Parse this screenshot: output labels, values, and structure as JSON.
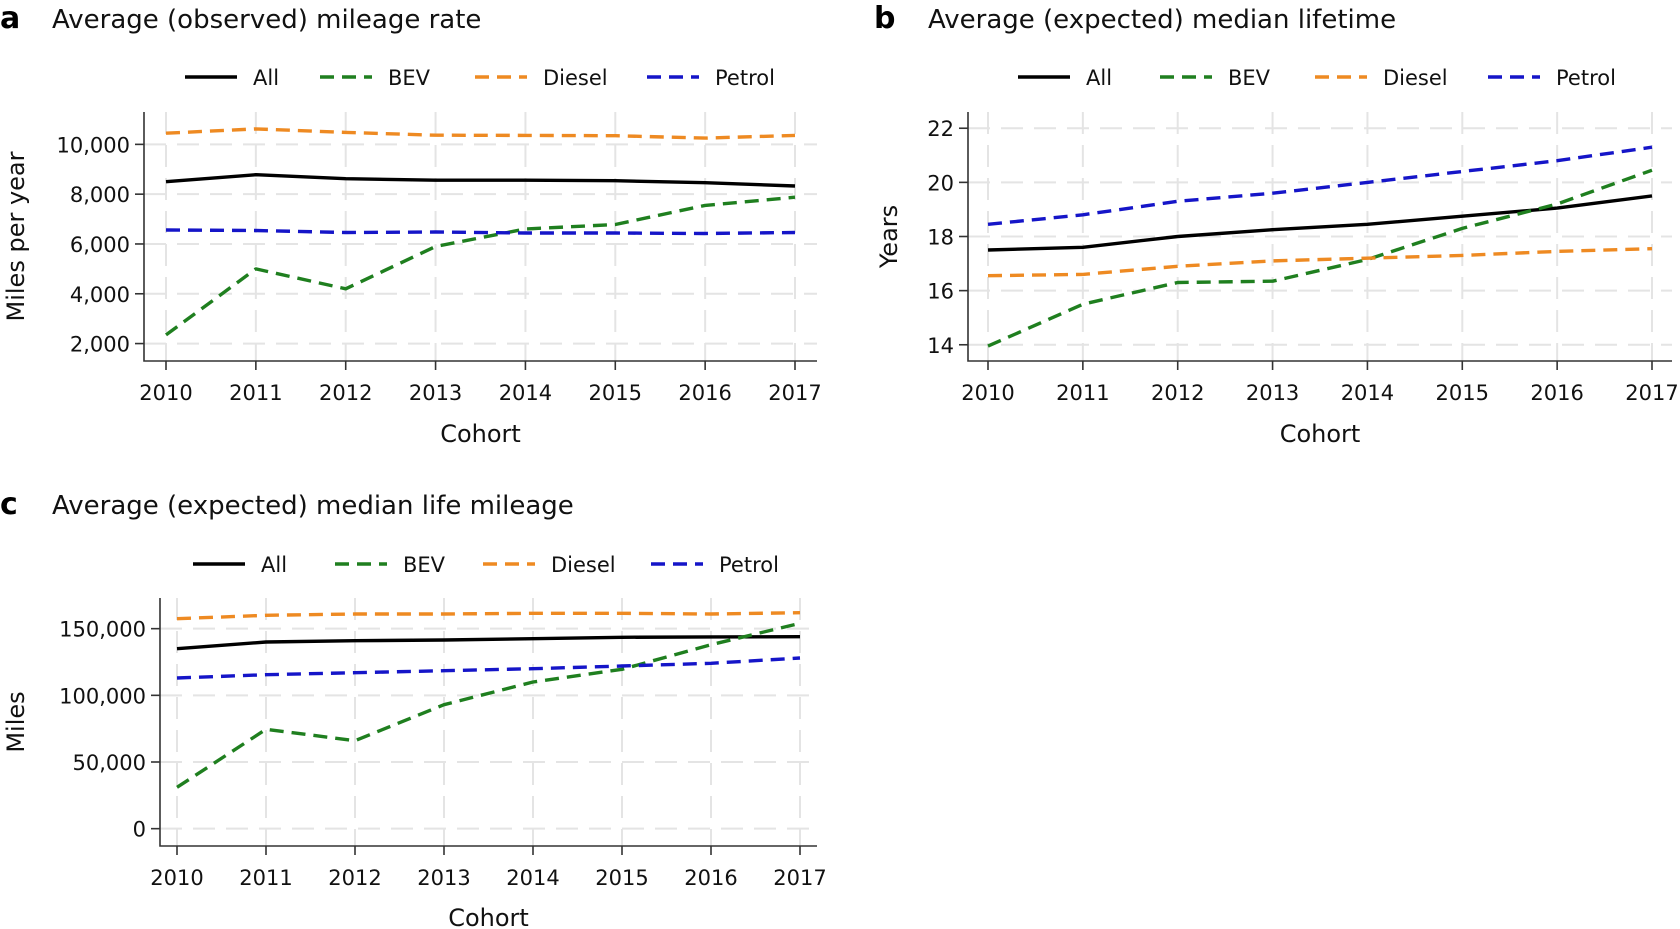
{
  "chart_data": [
    {
      "type": "line",
      "panel": "a",
      "title": "Average (observed) mileage rate",
      "xlabel": "Cohort",
      "ylabel": "Miles per year",
      "x": [
        2010,
        2011,
        2012,
        2013,
        2014,
        2015,
        2016,
        2017
      ],
      "yticks": [
        2000,
        4000,
        6000,
        8000,
        10000
      ],
      "ytick_labels": [
        "2,000",
        "4,000",
        "6,000",
        "8,000",
        "10,000"
      ],
      "ylim": [
        1300,
        11300
      ],
      "grid": true,
      "legend": "top",
      "series": [
        {
          "name": "All",
          "color": "#000000",
          "dash": "solid",
          "values": [
            8500,
            8780,
            8620,
            8560,
            8560,
            8540,
            8460,
            8330
          ]
        },
        {
          "name": "BEV",
          "color": "#1f7f1f",
          "dash": "dashed",
          "values": [
            2350,
            5000,
            4200,
            5900,
            6600,
            6780,
            7550,
            7880
          ]
        },
        {
          "name": "Diesel",
          "color": "#ee8a22",
          "dash": "dashed",
          "values": [
            10450,
            10620,
            10480,
            10370,
            10360,
            10350,
            10250,
            10360
          ]
        },
        {
          "name": "Petrol",
          "color": "#1515c8",
          "dash": "dashed",
          "values": [
            6560,
            6540,
            6460,
            6480,
            6440,
            6440,
            6420,
            6460
          ]
        }
      ]
    },
    {
      "type": "line",
      "panel": "b",
      "title": "Average (expected) median lifetime",
      "xlabel": "Cohort",
      "ylabel": "Years",
      "x": [
        2010,
        2011,
        2012,
        2013,
        2014,
        2015,
        2016,
        2017
      ],
      "yticks": [
        14,
        16,
        18,
        20,
        22
      ],
      "ytick_labels": [
        "14",
        "16",
        "18",
        "20",
        "22"
      ],
      "ylim": [
        13.4,
        22.6
      ],
      "grid": true,
      "legend": "top",
      "series": [
        {
          "name": "All",
          "color": "#000000",
          "dash": "solid",
          "values": [
            17.5,
            17.6,
            18.0,
            18.25,
            18.45,
            18.75,
            19.05,
            19.5
          ]
        },
        {
          "name": "BEV",
          "color": "#1f7f1f",
          "dash": "dashed",
          "values": [
            13.95,
            15.5,
            16.3,
            16.35,
            17.15,
            18.3,
            19.2,
            20.45
          ]
        },
        {
          "name": "Diesel",
          "color": "#ee8a22",
          "dash": "dashed",
          "values": [
            16.55,
            16.6,
            16.9,
            17.1,
            17.2,
            17.3,
            17.45,
            17.55
          ]
        },
        {
          "name": "Petrol",
          "color": "#1515c8",
          "dash": "dashed",
          "values": [
            18.45,
            18.8,
            19.3,
            19.6,
            20.0,
            20.4,
            20.8,
            21.3
          ]
        }
      ]
    },
    {
      "type": "line",
      "panel": "c",
      "title": "Average (expected) median life mileage",
      "xlabel": "Cohort",
      "ylabel": "Miles",
      "x": [
        2010,
        2011,
        2012,
        2013,
        2014,
        2015,
        2016,
        2017
      ],
      "yticks": [
        0,
        50000,
        100000,
        150000
      ],
      "ytick_labels": [
        "0",
        "50,000",
        "100,000",
        "150,000"
      ],
      "ylim": [
        -13000,
        173000
      ],
      "grid": true,
      "legend": "top",
      "series": [
        {
          "name": "All",
          "color": "#000000",
          "dash": "solid",
          "values": [
            135000,
            140000,
            141000,
            141500,
            142500,
            143500,
            143800,
            144000
          ]
        },
        {
          "name": "BEV",
          "color": "#1f7f1f",
          "dash": "dashed",
          "values": [
            31000,
            74500,
            66000,
            93000,
            110000,
            119500,
            138000,
            154000
          ]
        },
        {
          "name": "Diesel",
          "color": "#ee8a22",
          "dash": "dashed",
          "values": [
            157500,
            160000,
            161000,
            161000,
            161500,
            161500,
            161000,
            162000
          ]
        },
        {
          "name": "Petrol",
          "color": "#1515c8",
          "dash": "dashed",
          "values": [
            113000,
            115500,
            117000,
            118500,
            120000,
            122000,
            124000,
            128000
          ]
        }
      ]
    }
  ]
}
